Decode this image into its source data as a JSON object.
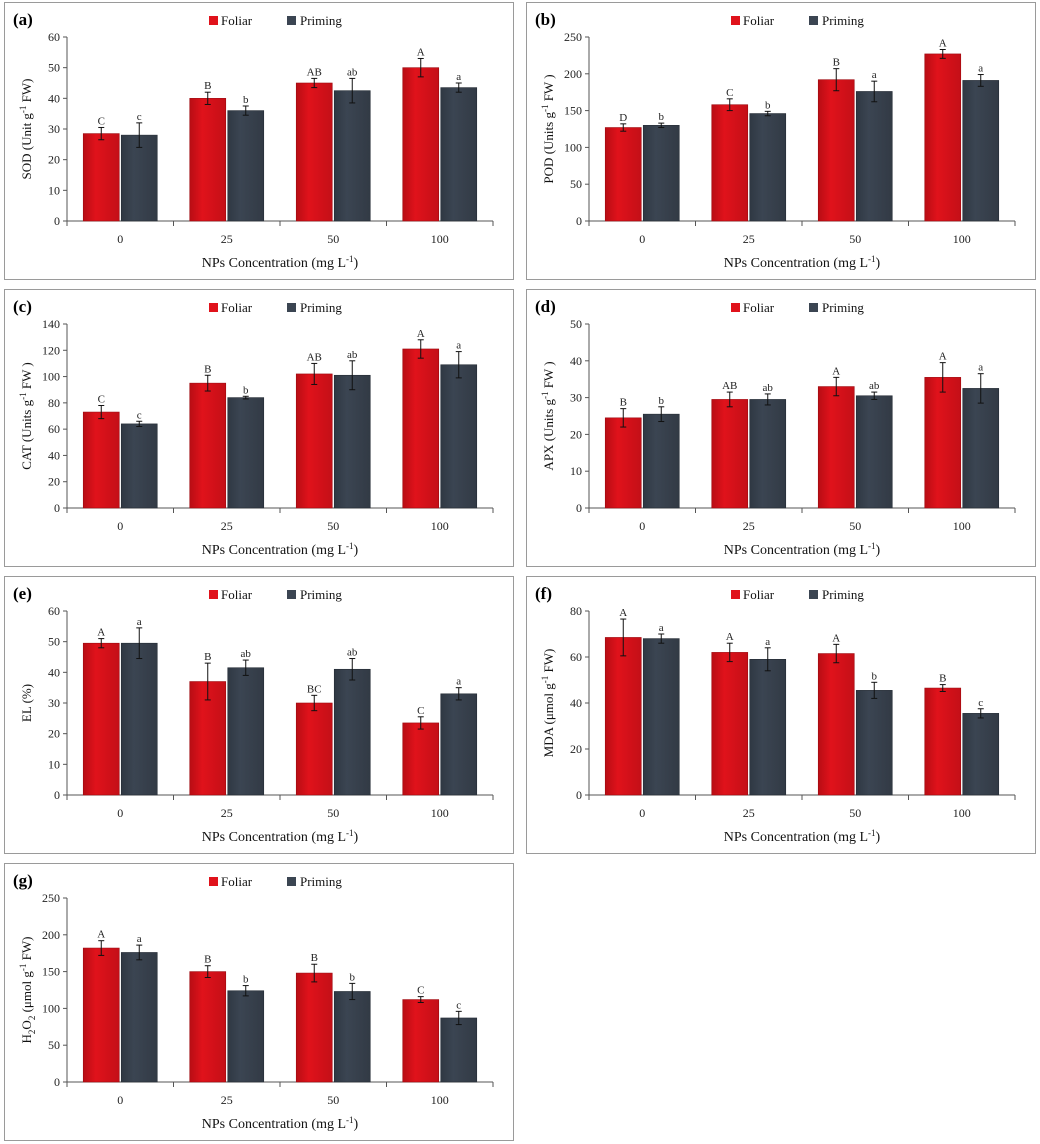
{
  "colors": {
    "foliar": "#e0121b",
    "priming": "#3b4552"
  },
  "chart_data": [
    {
      "type": "bar",
      "panel": "(a)",
      "title": "",
      "categories": [
        "0",
        "25",
        "50",
        "100"
      ],
      "legend": [
        "Foliar",
        "Priming"
      ],
      "series": [
        {
          "name": "Foliar",
          "values": [
            28.5,
            40,
            45,
            50
          ],
          "errors": [
            2,
            2,
            1.5,
            3
          ],
          "letters": [
            "C",
            "B",
            "AB",
            "A"
          ]
        },
        {
          "name": "Priming",
          "values": [
            28,
            36,
            42.5,
            43.5
          ],
          "errors": [
            4,
            1.5,
            4,
            1.5
          ],
          "letters": [
            "c",
            "b",
            "ab",
            "a"
          ]
        }
      ],
      "xlabel": "NPs Concentration (mg L",
      "xlabel_sup": "-1",
      "xlabel_end": ")",
      "ylabel": "SOD (Unit g",
      "ylabel_sup": "-1",
      "ylabel_end": " FW)",
      "ylim": [
        0,
        60
      ],
      "yticks": [
        "0",
        "10",
        "20",
        "30",
        "40",
        "50",
        "60"
      ]
    },
    {
      "type": "bar",
      "panel": "(b)",
      "title": "",
      "categories": [
        "0",
        "25",
        "50",
        "100"
      ],
      "legend": [
        "Foliar",
        "Priming"
      ],
      "series": [
        {
          "name": "Foliar",
          "values": [
            127,
            158,
            192,
            227
          ],
          "errors": [
            5,
            8,
            15,
            6
          ],
          "letters": [
            "D",
            "C",
            "B",
            "A"
          ]
        },
        {
          "name": "Priming",
          "values": [
            130,
            146,
            176,
            191
          ],
          "errors": [
            3,
            3,
            14,
            8
          ],
          "letters": [
            "b",
            "b",
            "a",
            "a"
          ]
        }
      ],
      "xlabel": "NPs Concentration (mg L",
      "xlabel_sup": "-1",
      "xlabel_end": ")",
      "ylabel": "POD (Units g",
      "ylabel_sup": "-1",
      "ylabel_end": " FW )",
      "ylim": [
        0,
        250
      ],
      "yticks": [
        "0",
        "50",
        "100",
        "150",
        "200",
        "250"
      ]
    },
    {
      "type": "bar",
      "panel": "(c)",
      "title": "",
      "categories": [
        "0",
        "25",
        "50",
        "100"
      ],
      "legend": [
        "Foliar",
        "Priming"
      ],
      "series": [
        {
          "name": "Foliar",
          "values": [
            73,
            95,
            102,
            121
          ],
          "errors": [
            5,
            6,
            8,
            7
          ],
          "letters": [
            "C",
            "B",
            "AB",
            "A"
          ]
        },
        {
          "name": "Priming",
          "values": [
            64,
            84,
            101,
            109
          ],
          "errors": [
            2,
            1,
            11,
            10
          ],
          "letters": [
            "c",
            "b",
            "ab",
            "a"
          ]
        }
      ],
      "xlabel": "NPs Concentration (mg L",
      "xlabel_sup": "-1",
      "xlabel_end": ")",
      "ylabel": "CAT (Units g",
      "ylabel_sup": "-1",
      "ylabel_end": " FW )",
      "ylim": [
        0,
        140
      ],
      "yticks": [
        "0",
        "20",
        "40",
        "60",
        "80",
        "100",
        "120",
        "140"
      ]
    },
    {
      "type": "bar",
      "panel": "(d)",
      "title": "",
      "categories": [
        "0",
        "25",
        "50",
        "100"
      ],
      "legend": [
        "Foliar",
        "Priming"
      ],
      "series": [
        {
          "name": "Foliar",
          "values": [
            24.5,
            29.5,
            33,
            35.5
          ],
          "errors": [
            2.5,
            2,
            2.5,
            4
          ],
          "letters": [
            "B",
            "AB",
            "A",
            "A"
          ]
        },
        {
          "name": "Priming",
          "values": [
            25.5,
            29.5,
            30.5,
            32.5
          ],
          "errors": [
            2,
            1.5,
            1,
            4
          ],
          "letters": [
            "b",
            "ab",
            "ab",
            "a"
          ]
        }
      ],
      "xlabel": "NPs Concentration (mg L",
      "xlabel_sup": "-1",
      "xlabel_end": ")",
      "ylabel": "APX (Units g",
      "ylabel_sup": "-1",
      "ylabel_end": " FW )",
      "ylim": [
        0,
        50
      ],
      "yticks": [
        "0",
        "10",
        "20",
        "30",
        "40",
        "50"
      ]
    },
    {
      "type": "bar",
      "panel": "(e)",
      "title": "",
      "categories": [
        "0",
        "25",
        "50",
        "100"
      ],
      "legend": [
        "Foliar",
        "Priming"
      ],
      "series": [
        {
          "name": "Foliar",
          "values": [
            49.5,
            37,
            30,
            23.5
          ],
          "errors": [
            1.5,
            6,
            2.5,
            2
          ],
          "letters": [
            "A",
            "B",
            "BC",
            "C"
          ]
        },
        {
          "name": "Priming",
          "values": [
            49.5,
            41.5,
            41,
            33
          ],
          "errors": [
            5,
            2.5,
            3.5,
            2
          ],
          "letters": [
            "a",
            "ab",
            "ab",
            "a"
          ]
        }
      ],
      "xlabel": "NPs Concentration (mg L",
      "xlabel_sup": "-1",
      "xlabel_end": ")",
      "ylabel": "EL (%)",
      "ylabel_sup": "",
      "ylabel_end": "",
      "ylim": [
        0,
        60
      ],
      "yticks": [
        "0",
        "10",
        "20",
        "30",
        "40",
        "50",
        "60"
      ]
    },
    {
      "type": "bar",
      "panel": "(f)",
      "title": "",
      "categories": [
        "0",
        "25",
        "50",
        "100"
      ],
      "legend": [
        "Foliar",
        "Priming"
      ],
      "series": [
        {
          "name": "Foliar",
          "values": [
            68.5,
            62,
            61.5,
            46.5
          ],
          "errors": [
            8,
            4,
            4,
            1.5
          ],
          "letters": [
            "A",
            "A",
            "A",
            "B"
          ]
        },
        {
          "name": "Priming",
          "values": [
            68,
            59,
            45.5,
            35.5
          ],
          "errors": [
            2,
            5,
            3.5,
            2
          ],
          "letters": [
            "a",
            "a",
            "b",
            "c"
          ]
        }
      ],
      "xlabel": "NPs Concentration (mg L",
      "xlabel_sup": "-1",
      "xlabel_end": ")",
      "ylabel": "MDA (μmol g",
      "ylabel_sup": "-1",
      "ylabel_end": " FW)",
      "ylim": [
        0,
        80
      ],
      "yticks": [
        "0",
        "20",
        "40",
        "60",
        "80"
      ]
    },
    {
      "type": "bar",
      "panel": "(g)",
      "title": "",
      "categories": [
        "0",
        "25",
        "50",
        "100"
      ],
      "legend": [
        "Foliar",
        "Priming"
      ],
      "series": [
        {
          "name": "Foliar",
          "values": [
            182,
            150,
            148,
            112
          ],
          "errors": [
            10,
            8,
            12,
            4
          ],
          "letters": [
            "A",
            "B",
            "B",
            "C"
          ]
        },
        {
          "name": "Priming",
          "values": [
            176,
            124,
            123,
            87
          ],
          "errors": [
            10,
            7,
            11,
            9
          ],
          "letters": [
            "a",
            "b",
            "b",
            "c"
          ]
        }
      ],
      "xlabel": "NPs Concentration (mg L",
      "xlabel_sup": "-1",
      "xlabel_end": ")",
      "ylabel": "H2O2 (μmol g",
      "ylabel_sup": "-1",
      "ylabel_end": " FW)",
      "ylabel_parts": [
        "H",
        "2",
        "O",
        "2",
        " (μmol g",
        "-1",
        " FW)"
      ],
      "ylim": [
        0,
        250
      ],
      "yticks": [
        "0",
        "50",
        "100",
        "150",
        "200",
        "250"
      ]
    }
  ]
}
